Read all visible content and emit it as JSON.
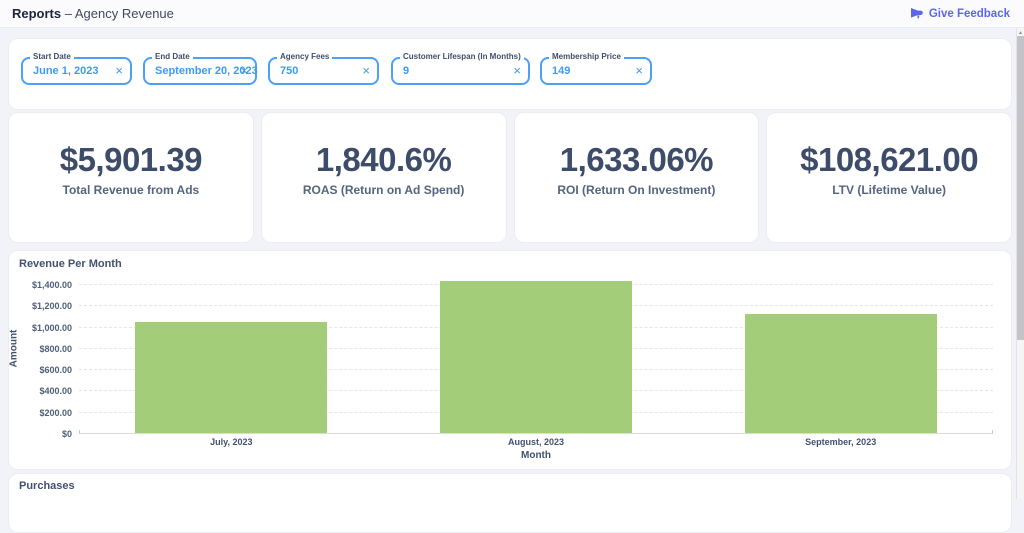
{
  "header": {
    "title_bold": "Reports",
    "title_rest": "– Agency Revenue",
    "feedback_label": "Give Feedback"
  },
  "filters": [
    {
      "label": "Start Date",
      "value": "June 1, 2023",
      "clear_icon": "×"
    },
    {
      "label": "End Date",
      "value": "September 20, 2023",
      "clear_icon": "×"
    },
    {
      "label": "Agency Fees",
      "value": "750",
      "clear_icon": "×"
    },
    {
      "label": "Customer Lifespan (In Months)",
      "value": "9",
      "clear_icon": "×"
    },
    {
      "label": "Membership Price",
      "value": "149",
      "clear_icon": "×"
    }
  ],
  "kpis": [
    {
      "value": "$5,901.39",
      "label": "Total Revenue from Ads"
    },
    {
      "value": "1,840.6%",
      "label": "ROAS (Return on Ad Spend)"
    },
    {
      "value": "1,633.06%",
      "label": "ROI (Return On Investment)"
    },
    {
      "value": "$108,621.00",
      "label": "LTV (Lifetime Value)"
    }
  ],
  "chart_data": {
    "type": "bar",
    "title": "Revenue Per Month",
    "categories": [
      "July, 2023",
      "August, 2023",
      "September, 2023"
    ],
    "values": [
      1050,
      1440,
      1125
    ],
    "xlabel": "Month",
    "ylabel": "Amount",
    "ylim": [
      0,
      1400
    ],
    "ytick_step": 200,
    "ytick_labels": [
      "$0",
      "$200.00",
      "$400.00",
      "$600.00",
      "$800.00",
      "$1,000.00",
      "$1,200.00",
      "$1,400.00"
    ],
    "grid": "horizontal-dashed",
    "legend": "none",
    "bar_color": "#a4cd79"
  },
  "purchases": {
    "title": "Purchases"
  },
  "colors": {
    "accent_blue": "#3e9bf5",
    "input_border": "#4aa1f6",
    "indigo_link": "#5b67e8",
    "kpi_text": "#3d4c68",
    "bar_green": "#a4cd79",
    "page_bg": "#f2f3f8"
  }
}
